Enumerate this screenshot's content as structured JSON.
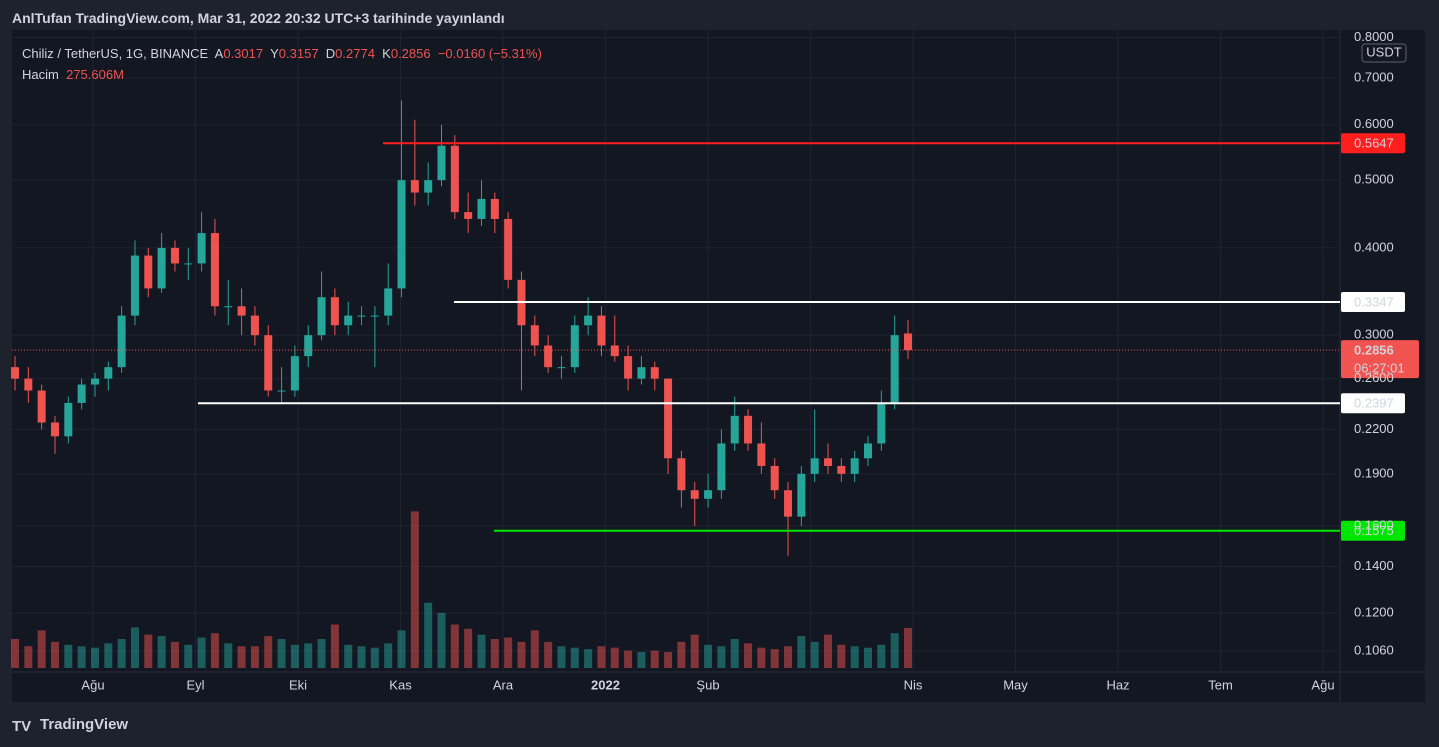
{
  "header": {
    "publication": "AnlTufan TradingView.com, Mar 31, 2022 20:32 UTC+3 tarihinde yayınlandı"
  },
  "legend": {
    "symbol": "Chiliz / TetherUS, 1G, BINANCE",
    "open_label": "A",
    "open": "0.3017",
    "high_label": "Y",
    "high": "0.3157",
    "low_label": "D",
    "low": "0.2774",
    "close_label": "K",
    "close": "0.2856",
    "change": "−0.0160 (−5.31%)",
    "volume_label": "Hacim",
    "volume": "275.606M"
  },
  "chart_data": {
    "type": "candlestick",
    "currency": "USDT",
    "log_scale": true,
    "grid": true,
    "up_color": "#26a69a",
    "down_color": "#ef5350",
    "ylim": [
      0.0989,
      0.82
    ],
    "yticks": [
      {
        "value": 0.8,
        "label": "0.8000"
      },
      {
        "value": 0.7,
        "label": "0.7000"
      },
      {
        "value": 0.6,
        "label": "0.6000"
      },
      {
        "value": 0.5,
        "label": "0.5000"
      },
      {
        "value": 0.4,
        "label": "0.4000"
      },
      {
        "value": 0.3,
        "label": "0.3000"
      },
      {
        "value": 0.26,
        "label": "0.2600"
      },
      {
        "value": 0.22,
        "label": "0.2200"
      },
      {
        "value": 0.19,
        "label": "0.1900"
      },
      {
        "value": 0.16,
        "label": "0.1600"
      },
      {
        "value": 0.14,
        "label": "0.1400"
      },
      {
        "value": 0.12,
        "label": "0.1200"
      },
      {
        "value": 0.106,
        "label": "0.1060"
      }
    ],
    "x_labels": [
      "Ağu",
      "Eyl",
      "Eki",
      "Kas",
      "Ara",
      "2022",
      "Şub",
      null,
      "Nis",
      "May",
      "Haz",
      "Tem",
      "Ağu"
    ],
    "open": [
      0.27,
      0.26,
      0.25,
      0.225,
      0.215,
      0.24,
      0.255,
      0.26,
      0.27,
      0.32,
      0.39,
      0.35,
      0.4,
      0.38,
      0.38,
      0.42,
      0.33,
      0.33,
      0.32,
      0.3,
      0.25,
      0.25,
      0.28,
      0.3,
      0.34,
      0.31,
      0.32,
      0.32,
      0.32,
      0.35,
      0.5,
      0.48,
      0.5,
      0.56,
      0.45,
      0.44,
      0.47,
      0.44,
      0.36,
      0.31,
      0.29,
      0.27,
      0.27,
      0.31,
      0.32,
      0.29,
      0.28,
      0.26,
      0.27,
      0.26,
      0.2,
      0.18,
      0.175,
      0.18,
      0.21,
      0.23,
      0.21,
      0.195,
      0.18,
      0.165,
      0.19,
      0.2,
      0.195,
      0.19,
      0.2,
      0.21,
      0.24,
      0.3017
    ],
    "high": [
      0.28,
      0.27,
      0.255,
      0.23,
      0.245,
      0.26,
      0.265,
      0.275,
      0.33,
      0.41,
      0.4,
      0.42,
      0.41,
      0.4,
      0.45,
      0.44,
      0.36,
      0.35,
      0.33,
      0.31,
      0.27,
      0.29,
      0.31,
      0.37,
      0.35,
      0.335,
      0.33,
      0.33,
      0.38,
      0.65,
      0.61,
      0.53,
      0.6,
      0.58,
      0.48,
      0.5,
      0.48,
      0.45,
      0.37,
      0.32,
      0.3,
      0.28,
      0.32,
      0.34,
      0.33,
      0.32,
      0.29,
      0.28,
      0.275,
      0.26,
      0.205,
      0.185,
      0.19,
      0.22,
      0.245,
      0.235,
      0.225,
      0.2,
      0.185,
      0.195,
      0.235,
      0.21,
      0.2,
      0.205,
      0.215,
      0.25,
      0.32,
      0.3157
    ],
    "low": [
      0.25,
      0.24,
      0.22,
      0.203,
      0.21,
      0.235,
      0.245,
      0.25,
      0.265,
      0.31,
      0.34,
      0.345,
      0.37,
      0.36,
      0.37,
      0.32,
      0.31,
      0.3,
      0.29,
      0.245,
      0.24,
      0.245,
      0.27,
      0.295,
      0.3,
      0.3,
      0.31,
      0.27,
      0.31,
      0.34,
      0.46,
      0.46,
      0.49,
      0.44,
      0.42,
      0.43,
      0.42,
      0.35,
      0.25,
      0.28,
      0.265,
      0.26,
      0.265,
      0.3,
      0.28,
      0.275,
      0.25,
      0.255,
      0.25,
      0.19,
      0.17,
      0.16,
      0.17,
      0.175,
      0.205,
      0.205,
      0.19,
      0.175,
      0.145,
      0.16,
      0.185,
      0.19,
      0.185,
      0.185,
      0.195,
      0.205,
      0.235,
      0.2774
    ],
    "close": [
      0.26,
      0.25,
      0.225,
      0.215,
      0.24,
      0.255,
      0.26,
      0.27,
      0.32,
      0.39,
      0.35,
      0.4,
      0.38,
      0.38,
      0.42,
      0.33,
      0.33,
      0.32,
      0.3,
      0.25,
      0.25,
      0.28,
      0.3,
      0.34,
      0.31,
      0.32,
      0.32,
      0.32,
      0.35,
      0.5,
      0.48,
      0.5,
      0.56,
      0.45,
      0.44,
      0.47,
      0.44,
      0.36,
      0.31,
      0.29,
      0.27,
      0.27,
      0.31,
      0.32,
      0.29,
      0.28,
      0.26,
      0.27,
      0.26,
      0.2,
      0.18,
      0.175,
      0.18,
      0.21,
      0.23,
      0.21,
      0.195,
      0.18,
      0.165,
      0.19,
      0.2,
      0.195,
      0.19,
      0.2,
      0.21,
      0.24,
      0.3,
      0.2856
    ],
    "volume": [
      200,
      150,
      260,
      180,
      160,
      150,
      140,
      170,
      200,
      280,
      230,
      220,
      180,
      160,
      210,
      240,
      170,
      150,
      150,
      220,
      200,
      160,
      170,
      200,
      300,
      160,
      150,
      140,
      170,
      260,
      1080,
      450,
      380,
      300,
      270,
      230,
      200,
      210,
      180,
      260,
      180,
      150,
      140,
      130,
      150,
      140,
      120,
      110,
      120,
      110,
      180,
      230,
      160,
      150,
      200,
      170,
      140,
      130,
      150,
      220,
      180,
      230,
      160,
      150,
      140,
      160,
      240,
      275.606
    ],
    "levels": [
      {
        "value": 0.5647,
        "color": "#ff1e1e"
      },
      {
        "value": 0.3347,
        "color": "#ffffff"
      },
      {
        "value": 0.2397,
        "color": "#ffffff"
      },
      {
        "value": 0.1575,
        "color": "#00e600"
      }
    ],
    "last_price": {
      "value": 0.2856,
      "countdown": "06:27:01",
      "color": "#f05350"
    }
  },
  "footer": {
    "brand": "TradingView"
  }
}
